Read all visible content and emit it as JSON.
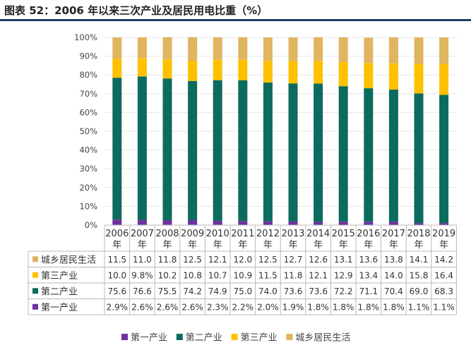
{
  "title": "图表 52：2006 年以来三次产业及居民用电比重（%）",
  "chart_data": {
    "type": "bar",
    "stacked": true,
    "percent": true,
    "categories": [
      "2006年",
      "2007年",
      "2008年",
      "2009年",
      "2010年",
      "2011年",
      "2012年",
      "2013年",
      "2014年",
      "2015年",
      "2016年",
      "2017年",
      "2018年",
      "2019年"
    ],
    "ylim": [
      0,
      100
    ],
    "yticks": [
      "0%",
      "10%",
      "20%",
      "30%",
      "40%",
      "50%",
      "60%",
      "70%",
      "80%",
      "90%",
      "100%"
    ],
    "series": [
      {
        "name": "第一产业",
        "color": "#7030a0",
        "values": [
          2.9,
          2.6,
          2.6,
          2.6,
          2.3,
          2.2,
          2.0,
          1.9,
          1.8,
          1.8,
          1.8,
          1.8,
          1.1,
          1.1
        ],
        "labels": [
          "2.9%",
          "2.6%",
          "2.6%",
          "2.6%",
          "2.3%",
          "2.2%",
          "2.0%",
          "1.9%",
          "1.8%",
          "1.8%",
          "1.8%",
          "1.8%",
          "1.1%",
          "1.1%"
        ]
      },
      {
        "name": "第二产业",
        "color": "#0b6b5e",
        "values": [
          75.6,
          76.6,
          75.5,
          74.2,
          74.9,
          75.0,
          74.0,
          73.6,
          73.6,
          72.2,
          71.1,
          70.4,
          69.0,
          68.3
        ],
        "labels": [
          "75.6",
          "76.6",
          "75.5",
          "74.2",
          "74.9",
          "75.0",
          "74.0",
          "73.6",
          "73.6",
          "72.2",
          "71.1",
          "70.4",
          "69.0",
          "68.3"
        ]
      },
      {
        "name": "第三产业",
        "color": "#ffc000",
        "values": [
          10.0,
          9.8,
          10.2,
          10.8,
          10.7,
          10.9,
          11.5,
          11.8,
          12.1,
          12.9,
          13.4,
          14.0,
          15.8,
          16.4
        ],
        "labels": [
          "10.0",
          "9.8%",
          "10.2",
          "10.8",
          "10.7",
          "10.9",
          "11.5",
          "11.8",
          "12.1",
          "12.9",
          "13.4",
          "14.0",
          "15.8",
          "16.4"
        ]
      },
      {
        "name": "城乡居民生活",
        "color": "#e0b560",
        "values": [
          11.5,
          11.0,
          11.8,
          12.5,
          12.1,
          12.0,
          12.5,
          12.7,
          12.6,
          13.1,
          13.6,
          13.8,
          14.1,
          14.2
        ],
        "labels": [
          "11.5",
          "11.0",
          "11.8",
          "12.5",
          "12.1",
          "12.0",
          "12.5",
          "12.7",
          "12.6",
          "13.1",
          "13.6",
          "13.8",
          "14.1",
          "14.2"
        ]
      }
    ],
    "legend": {
      "position": "bottom",
      "order": [
        "第一产业",
        "第二产业",
        "第三产业",
        "城乡居民生活"
      ]
    }
  }
}
